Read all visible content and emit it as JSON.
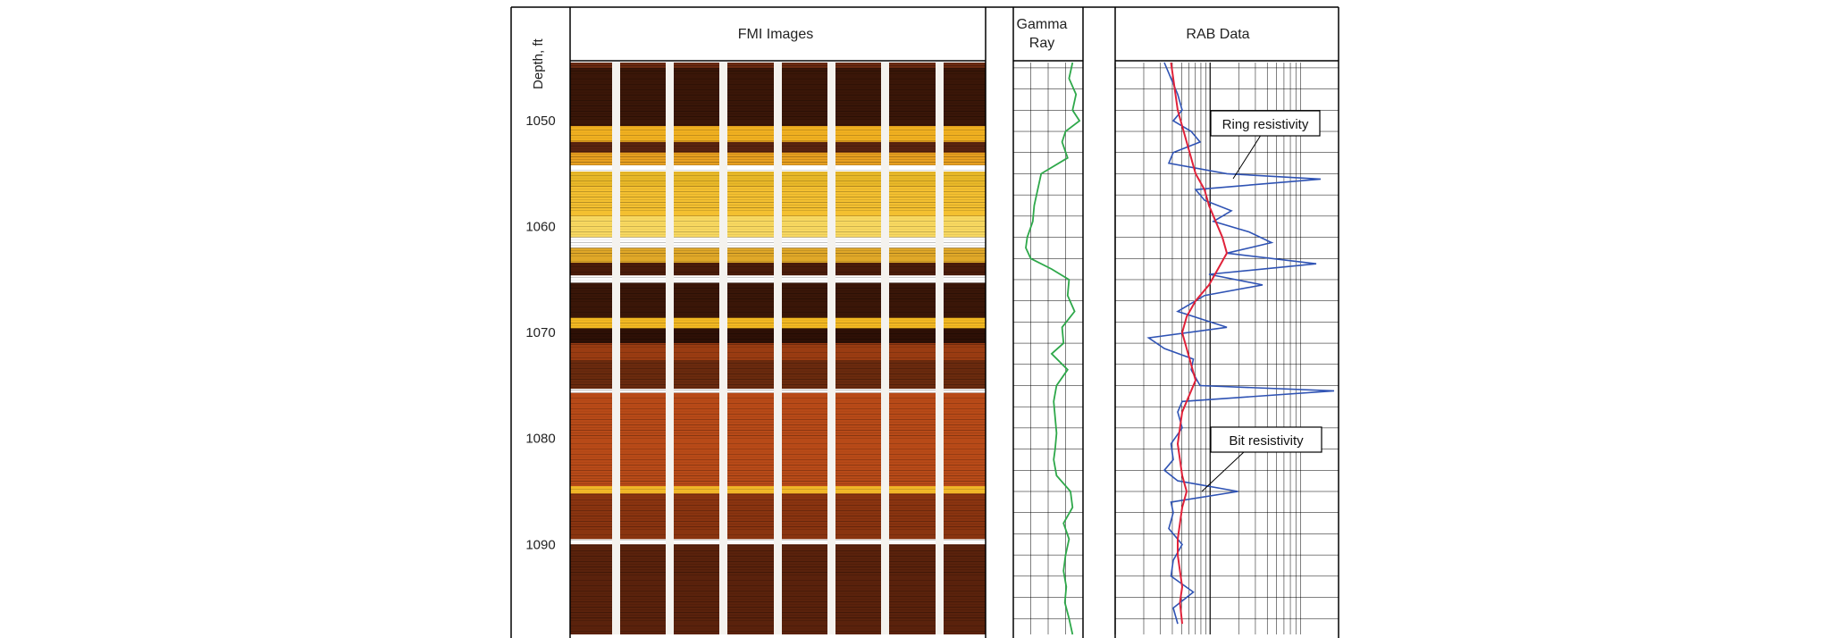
{
  "headers": {
    "depth_label": "Depth, ft",
    "fmi_title": "FMI Images",
    "gamma_title_line1": "Gamma",
    "gamma_title_line2": "Ray",
    "rab_title": "RAB Data"
  },
  "annotations": {
    "ring_label": "Ring resistivity",
    "bit_label": "Bit resistivity"
  },
  "colors": {
    "gamma_curve": "#2ea84a",
    "ring_curve": "#2f53b4",
    "bit_curve": "#e0223a",
    "grid": "#000000",
    "fmi_base": "#6b2a12"
  },
  "chart_data": {
    "type": "line",
    "y_axis": {
      "label": "Depth, ft",
      "range": [
        1044.5,
        1098.5
      ],
      "ticks": [
        1050,
        1060,
        1070,
        1080,
        1090
      ],
      "inverted": true
    },
    "tracks": [
      {
        "name": "FMI Images",
        "kind": "image-log",
        "bands": [
          {
            "top": 1045.0,
            "bottom": 1050.5,
            "color": "#3a1608"
          },
          {
            "top": 1050.5,
            "bottom": 1052.0,
            "color": "#f0b020"
          },
          {
            "top": 1052.0,
            "bottom": 1053.0,
            "color": "#5a2410"
          },
          {
            "top": 1053.0,
            "bottom": 1054.2,
            "color": "#e8a020"
          },
          {
            "top": 1054.2,
            "bottom": 1054.8,
            "color": "#ffffff"
          },
          {
            "top": 1054.8,
            "bottom": 1056.2,
            "color": "#e8b828"
          },
          {
            "top": 1056.2,
            "bottom": 1059.0,
            "color": "#f4c030"
          },
          {
            "top": 1059.0,
            "bottom": 1061.0,
            "color": "#f8d860"
          },
          {
            "top": 1061.0,
            "bottom": 1062.0,
            "color": "#ffffff"
          },
          {
            "top": 1062.0,
            "bottom": 1063.4,
            "color": "#e0a828"
          },
          {
            "top": 1063.4,
            "bottom": 1064.6,
            "color": "#4a1c0a"
          },
          {
            "top": 1064.6,
            "bottom": 1065.3,
            "color": "#ffffff"
          },
          {
            "top": 1065.3,
            "bottom": 1068.6,
            "color": "#3a1608"
          },
          {
            "top": 1068.6,
            "bottom": 1069.6,
            "color": "#f2b822"
          },
          {
            "top": 1069.6,
            "bottom": 1071.0,
            "color": "#2e1006"
          },
          {
            "top": 1071.0,
            "bottom": 1072.6,
            "color": "#9a3c12"
          },
          {
            "top": 1072.6,
            "bottom": 1075.3,
            "color": "#6a2a0e"
          },
          {
            "top": 1075.3,
            "bottom": 1075.7,
            "color": "#ffffff"
          },
          {
            "top": 1075.7,
            "bottom": 1084.5,
            "color": "#b84a18"
          },
          {
            "top": 1084.5,
            "bottom": 1085.2,
            "color": "#f2b828"
          },
          {
            "top": 1085.2,
            "bottom": 1089.5,
            "color": "#8a3410"
          },
          {
            "top": 1089.5,
            "bottom": 1090.0,
            "color": "#ffffff"
          },
          {
            "top": 1090.0,
            "bottom": 1098.5,
            "color": "#5a220c"
          }
        ],
        "pad_gaps": 7
      },
      {
        "name": "Gamma Ray",
        "series": [
          {
            "color": "#2ea84a",
            "depth": [
              1044.5,
              1046,
              1047.5,
              1049,
              1050,
              1051,
              1052,
              1053.5,
              1055,
              1056.5,
              1058,
              1059.5,
              1061,
              1062,
              1063,
              1064,
              1065,
              1066.5,
              1068,
              1069.5,
              1071,
              1072,
              1073.5,
              1075,
              1076.5,
              1078,
              1079.5,
              1081,
              1082,
              1083.5,
              1085,
              1086.5,
              1088,
              1089.5,
              1091,
              1092.5,
              1094,
              1095.5,
              1097,
              1098.5
            ],
            "value": [
              0.85,
              0.8,
              0.9,
              0.85,
              0.95,
              0.75,
              0.7,
              0.78,
              0.4,
              0.35,
              0.3,
              0.28,
              0.2,
              0.18,
              0.25,
              0.55,
              0.8,
              0.78,
              0.88,
              0.7,
              0.72,
              0.55,
              0.78,
              0.62,
              0.58,
              0.6,
              0.62,
              0.6,
              0.58,
              0.62,
              0.82,
              0.85,
              0.72,
              0.8,
              0.75,
              0.72,
              0.76,
              0.74,
              0.8,
              0.85
            ]
          }
        ]
      },
      {
        "name": "RAB Data",
        "series": [
          {
            "name": "Ring resistivity",
            "color": "#2f53b4",
            "depth": [
              1044.5,
              1046,
              1047.5,
              1049,
              1050,
              1051,
              1052,
              1053,
              1054,
              1055,
              1055.5,
              1056.5,
              1057.5,
              1058.5,
              1059.5,
              1060.5,
              1061.5,
              1062.5,
              1063.5,
              1064.5,
              1065.5,
              1066.5,
              1068,
              1069.5,
              1070.5,
              1071.5,
              1072.5,
              1073.5,
              1075,
              1075.5,
              1076.5,
              1077.5,
              1079,
              1080.5,
              1082,
              1083,
              1084,
              1085,
              1086,
              1087,
              1088.5,
              1090,
              1091.5,
              1093,
              1094.5,
              1096,
              1097.5
            ],
            "value": [
              0.22,
              0.25,
              0.28,
              0.3,
              0.26,
              0.34,
              0.38,
              0.26,
              0.24,
              0.5,
              0.92,
              0.36,
              0.4,
              0.52,
              0.44,
              0.6,
              0.7,
              0.5,
              0.9,
              0.42,
              0.66,
              0.4,
              0.28,
              0.5,
              0.15,
              0.22,
              0.35,
              0.34,
              0.38,
              0.98,
              0.3,
              0.28,
              0.3,
              0.25,
              0.26,
              0.22,
              0.28,
              0.55,
              0.25,
              0.26,
              0.24,
              0.3,
              0.26,
              0.25,
              0.35,
              0.26,
              0.28
            ]
          },
          {
            "name": "Bit resistivity",
            "color": "#e0223a",
            "depth": [
              1044.5,
              1046,
              1047.5,
              1049,
              1050.5,
              1052,
              1053.5,
              1055,
              1056.5,
              1058,
              1059.5,
              1061,
              1062.5,
              1064,
              1065.5,
              1067,
              1068.5,
              1070,
              1071.5,
              1073,
              1074.5,
              1076,
              1077.5,
              1079,
              1080.5,
              1082,
              1083.5,
              1085,
              1086.5,
              1088,
              1089.5,
              1091,
              1092.5,
              1094,
              1095.5,
              1097.5
            ],
            "value": [
              0.25,
              0.26,
              0.27,
              0.28,
              0.3,
              0.32,
              0.34,
              0.36,
              0.4,
              0.42,
              0.45,
              0.48,
              0.5,
              0.46,
              0.42,
              0.36,
              0.32,
              0.3,
              0.32,
              0.34,
              0.36,
              0.33,
              0.3,
              0.29,
              0.28,
              0.29,
              0.3,
              0.32,
              0.3,
              0.29,
              0.28,
              0.28,
              0.29,
              0.3,
              0.29,
              0.3
            ]
          }
        ]
      }
    ]
  }
}
